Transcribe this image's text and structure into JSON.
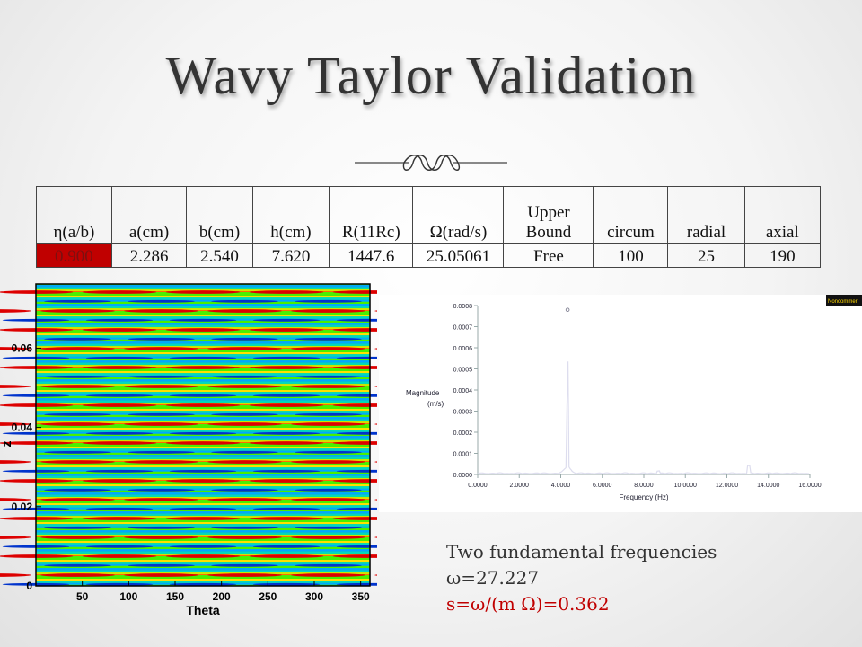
{
  "title": "Wavy Taylor Validation",
  "table": {
    "headers": [
      "η(a/b)",
      "a(cm)",
      "b(cm)",
      "h(cm)",
      "R(11Rc)",
      "Ω(rad/s)",
      "Upper Bound",
      "circum",
      "radial",
      "axial"
    ],
    "values": [
      "0.900",
      "2.286",
      "2.540",
      "7.620",
      "1447.6",
      "25.05061",
      "Free",
      "100",
      "25",
      "190"
    ]
  },
  "contour_plot": {
    "xlabel": "Theta",
    "ylabel": "z",
    "x_ticks": [
      "50",
      "100",
      "150",
      "200",
      "250",
      "300",
      "350"
    ],
    "y_ticks": [
      "0",
      "0.02",
      "0.04",
      "0.06"
    ],
    "colors": [
      "#0033cc",
      "#00a8ff",
      "#00d8c0",
      "#49f000",
      "#ffe000",
      "#ff6a00",
      "#dd0000"
    ]
  },
  "spectrum_plot": {
    "ylabel": "Magnitude",
    "yunit": "(m/s)",
    "xlabel": "Frequency (Hz)",
    "x_ticks": [
      "0.0000",
      "2.0000",
      "4.0000",
      "6.0000",
      "8.0000",
      "10.0000",
      "12.0000",
      "14.0000",
      "16.0000"
    ],
    "y_ticks": [
      "0.0000",
      "0.0001",
      "0.0002",
      "0.0003",
      "0.0004",
      "0.0005",
      "0.0006",
      "0.0007",
      "0.0008"
    ],
    "peak": {
      "x": 4.33,
      "y": 0.00078
    },
    "badge_text": "Noncommer"
  },
  "caption": {
    "line1": "Two fundamental frequencies",
    "line2": "ω=27.227",
    "line3": "s=ω/(m Ω)=0.362"
  }
}
